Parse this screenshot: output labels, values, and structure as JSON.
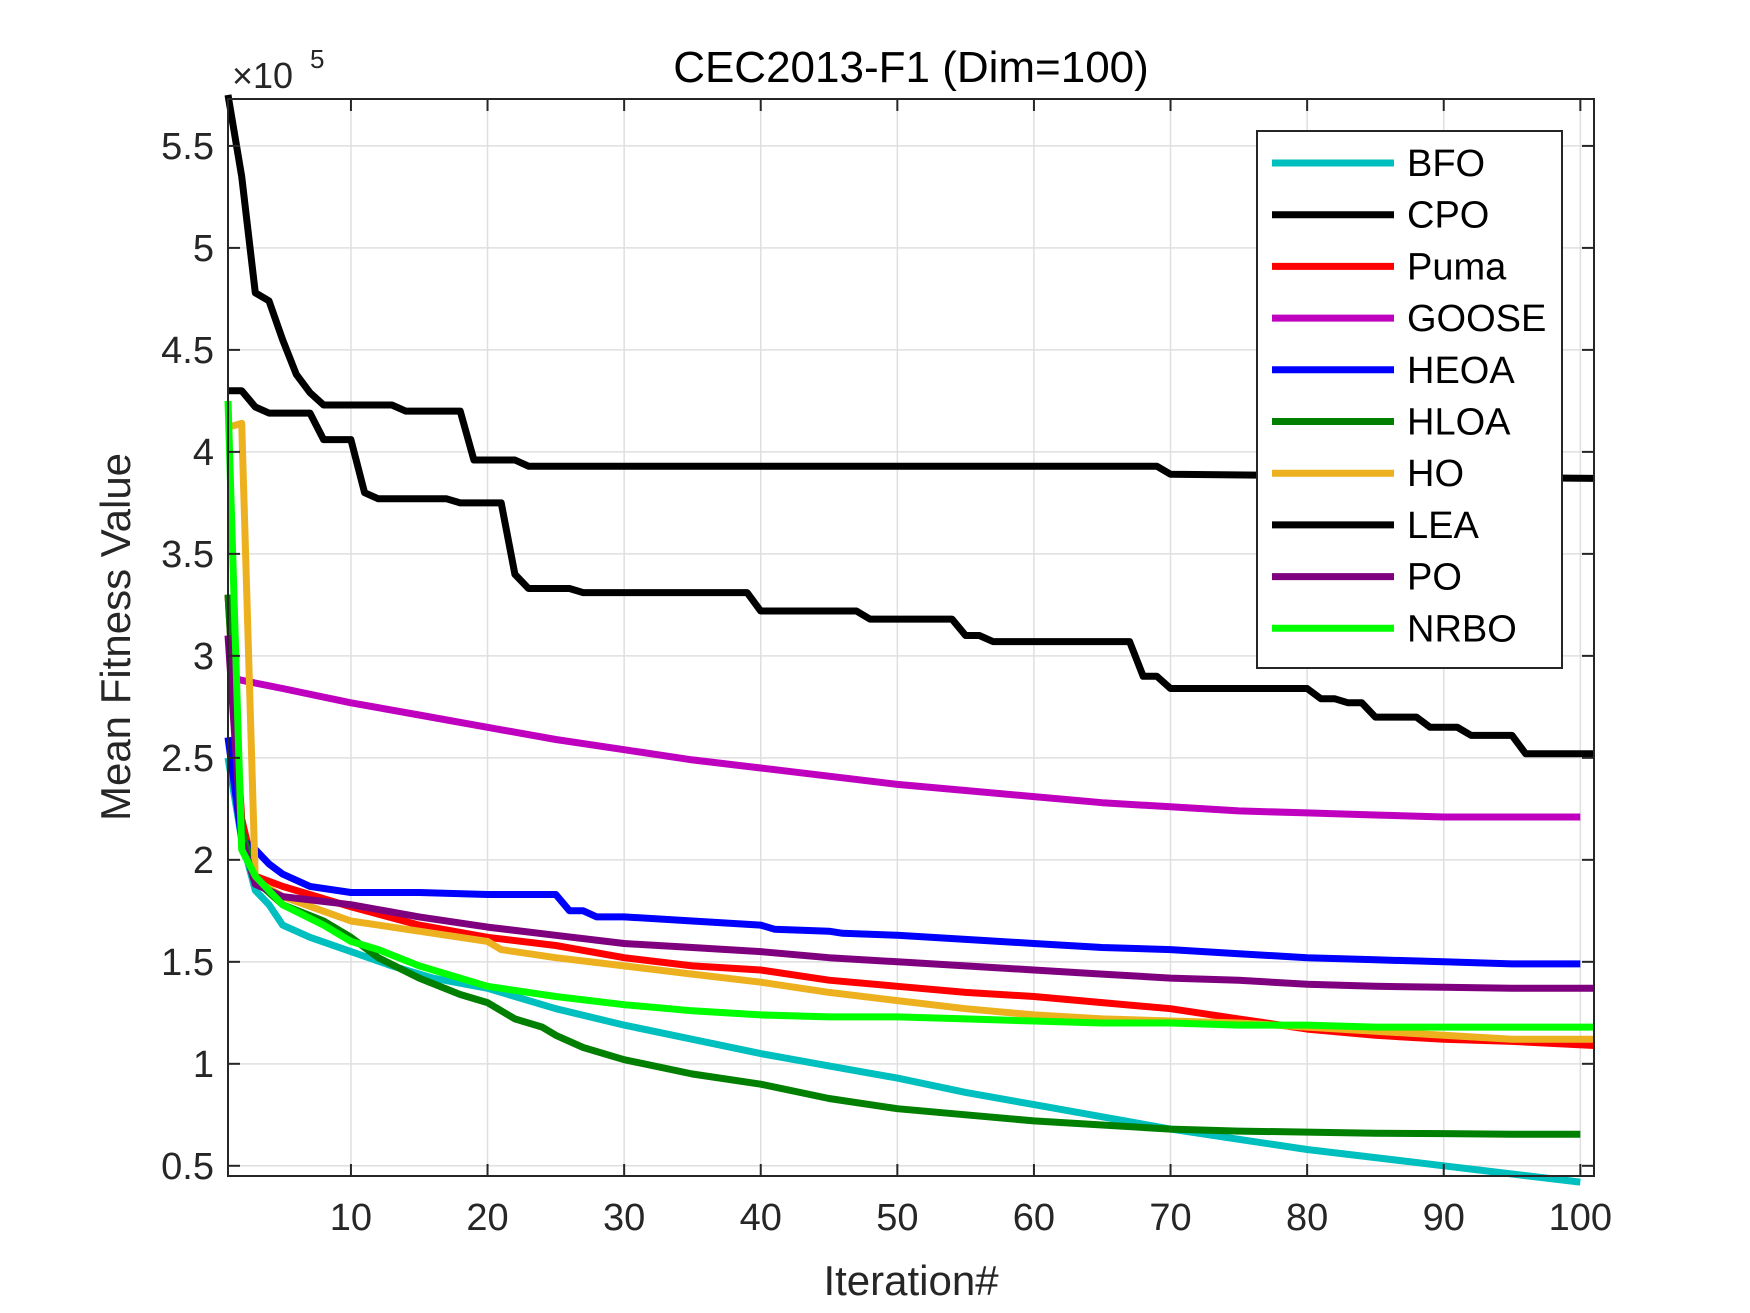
{
  "chart_data": {
    "type": "line",
    "title": "CEC2013-F1 (Dim=100)",
    "xlabel": "Iteration#",
    "ylabel": "Mean Fitness Value",
    "y_multiplier": {
      "base": "×10",
      "exponent": "5"
    },
    "xlim": [
      1,
      101
    ],
    "ylim": [
      0.45,
      5.73
    ],
    "x_ticks": [
      10,
      20,
      30,
      40,
      50,
      60,
      70,
      80,
      90,
      100
    ],
    "x_tick_labels": [
      "10",
      "20",
      "30",
      "40",
      "50",
      "60",
      "70",
      "80",
      "90",
      "100"
    ],
    "y_ticks": [
      0.5,
      1,
      1.5,
      2,
      2.5,
      3,
      3.5,
      4,
      4.5,
      5,
      5.5
    ],
    "y_tick_labels": [
      "0.5",
      "1",
      "1.5",
      "2",
      "2.5",
      "3",
      "3.5",
      "4",
      "4.5",
      "5",
      "5.5"
    ],
    "grid": true,
    "legend_position": "top-right",
    "series": [
      {
        "name": "BFO",
        "color": "#00bfbf",
        "points": [
          [
            1,
            2.5
          ],
          [
            2,
            2.1
          ],
          [
            3,
            1.85
          ],
          [
            4,
            1.78
          ],
          [
            5,
            1.68
          ],
          [
            7,
            1.62
          ],
          [
            10,
            1.55
          ],
          [
            13,
            1.48
          ],
          [
            16,
            1.42
          ],
          [
            20,
            1.37
          ],
          [
            25,
            1.27
          ],
          [
            30,
            1.19
          ],
          [
            35,
            1.12
          ],
          [
            40,
            1.05
          ],
          [
            45,
            0.99
          ],
          [
            50,
            0.93
          ],
          [
            55,
            0.86
          ],
          [
            60,
            0.8
          ],
          [
            65,
            0.74
          ],
          [
            70,
            0.68
          ],
          [
            75,
            0.63
          ],
          [
            80,
            0.58
          ],
          [
            85,
            0.54
          ],
          [
            90,
            0.5
          ],
          [
            95,
            0.46
          ],
          [
            100,
            0.42
          ]
        ]
      },
      {
        "name": "CPO",
        "color": "#000000",
        "points": [
          [
            1,
            4.3
          ],
          [
            2,
            4.3
          ],
          [
            3,
            4.22
          ],
          [
            4,
            4.19
          ],
          [
            7,
            4.19
          ],
          [
            8,
            4.06
          ],
          [
            10,
            4.06
          ],
          [
            11,
            3.8
          ],
          [
            12,
            3.77
          ],
          [
            17,
            3.77
          ],
          [
            18,
            3.75
          ],
          [
            21,
            3.75
          ],
          [
            22,
            3.4
          ],
          [
            23,
            3.33
          ],
          [
            26,
            3.33
          ],
          [
            27,
            3.31
          ],
          [
            39,
            3.31
          ],
          [
            40,
            3.22
          ],
          [
            47,
            3.22
          ],
          [
            48,
            3.18
          ],
          [
            54,
            3.18
          ],
          [
            55,
            3.1
          ],
          [
            56,
            3.1
          ],
          [
            57,
            3.07
          ],
          [
            66,
            3.07
          ],
          [
            67,
            3.07
          ],
          [
            68,
            2.9
          ],
          [
            69,
            2.9
          ],
          [
            70,
            2.84
          ],
          [
            80,
            2.84
          ],
          [
            81,
            2.79
          ],
          [
            82,
            2.79
          ],
          [
            83,
            2.77
          ],
          [
            84,
            2.77
          ],
          [
            85,
            2.7
          ],
          [
            88,
            2.7
          ],
          [
            89,
            2.65
          ],
          [
            91,
            2.65
          ],
          [
            92,
            2.61
          ],
          [
            95,
            2.61
          ],
          [
            96,
            2.52
          ],
          [
            101,
            2.52
          ]
        ]
      },
      {
        "name": "Puma",
        "color": "#ff0000",
        "points": [
          [
            1,
            3.3
          ],
          [
            2,
            2.2
          ],
          [
            3,
            1.92
          ],
          [
            5,
            1.87
          ],
          [
            10,
            1.77
          ],
          [
            15,
            1.68
          ],
          [
            20,
            1.62
          ],
          [
            25,
            1.58
          ],
          [
            30,
            1.52
          ],
          [
            35,
            1.48
          ],
          [
            40,
            1.46
          ],
          [
            45,
            1.41
          ],
          [
            50,
            1.38
          ],
          [
            55,
            1.35
          ],
          [
            60,
            1.33
          ],
          [
            65,
            1.3
          ],
          [
            70,
            1.27
          ],
          [
            75,
            1.22
          ],
          [
            80,
            1.17
          ],
          [
            85,
            1.14
          ],
          [
            90,
            1.12
          ],
          [
            95,
            1.11
          ],
          [
            101,
            1.09
          ]
        ]
      },
      {
        "name": "GOOSE",
        "color": "#bf00bf",
        "points": [
          [
            1,
            2.9
          ],
          [
            2,
            2.88
          ],
          [
            5,
            2.84
          ],
          [
            10,
            2.77
          ],
          [
            15,
            2.71
          ],
          [
            20,
            2.65
          ],
          [
            25,
            2.59
          ],
          [
            30,
            2.54
          ],
          [
            35,
            2.49
          ],
          [
            40,
            2.45
          ],
          [
            45,
            2.41
          ],
          [
            50,
            2.37
          ],
          [
            55,
            2.34
          ],
          [
            60,
            2.31
          ],
          [
            65,
            2.28
          ],
          [
            70,
            2.26
          ],
          [
            75,
            2.24
          ],
          [
            80,
            2.23
          ],
          [
            85,
            2.22
          ],
          [
            90,
            2.21
          ],
          [
            95,
            2.21
          ],
          [
            100,
            2.21
          ]
        ]
      },
      {
        "name": "HEOA",
        "color": "#0000ff",
        "points": [
          [
            1,
            2.6
          ],
          [
            2,
            2.1
          ],
          [
            3,
            2.05
          ],
          [
            4,
            1.98
          ],
          [
            5,
            1.93
          ],
          [
            7,
            1.87
          ],
          [
            10,
            1.84
          ],
          [
            15,
            1.84
          ],
          [
            20,
            1.83
          ],
          [
            25,
            1.83
          ],
          [
            26,
            1.75
          ],
          [
            27,
            1.75
          ],
          [
            28,
            1.72
          ],
          [
            30,
            1.72
          ],
          [
            35,
            1.7
          ],
          [
            40,
            1.68
          ],
          [
            41,
            1.66
          ],
          [
            45,
            1.65
          ],
          [
            46,
            1.64
          ],
          [
            50,
            1.63
          ],
          [
            55,
            1.61
          ],
          [
            60,
            1.59
          ],
          [
            65,
            1.57
          ],
          [
            70,
            1.56
          ],
          [
            75,
            1.54
          ],
          [
            80,
            1.52
          ],
          [
            85,
            1.51
          ],
          [
            90,
            1.5
          ],
          [
            95,
            1.49
          ],
          [
            100,
            1.49
          ]
        ]
      },
      {
        "name": "HLOA",
        "color": "#007f00",
        "points": [
          [
            1,
            3.3
          ],
          [
            2,
            2.15
          ],
          [
            3,
            1.9
          ],
          [
            5,
            1.78
          ],
          [
            8,
            1.7
          ],
          [
            10,
            1.62
          ],
          [
            12,
            1.52
          ],
          [
            15,
            1.42
          ],
          [
            18,
            1.34
          ],
          [
            20,
            1.3
          ],
          [
            22,
            1.22
          ],
          [
            24,
            1.18
          ],
          [
            25,
            1.14
          ],
          [
            27,
            1.08
          ],
          [
            30,
            1.02
          ],
          [
            35,
            0.95
          ],
          [
            40,
            0.9
          ],
          [
            45,
            0.83
          ],
          [
            50,
            0.78
          ],
          [
            55,
            0.75
          ],
          [
            60,
            0.72
          ],
          [
            65,
            0.7
          ],
          [
            70,
            0.68
          ],
          [
            75,
            0.67
          ],
          [
            80,
            0.665
          ],
          [
            85,
            0.66
          ],
          [
            90,
            0.658
          ],
          [
            95,
            0.655
          ],
          [
            100,
            0.655
          ]
        ]
      },
      {
        "name": "HO",
        "color": "#edb120",
        "points": [
          [
            1,
            4.12
          ],
          [
            2,
            4.14
          ],
          [
            3,
            1.9
          ],
          [
            5,
            1.82
          ],
          [
            10,
            1.7
          ],
          [
            15,
            1.65
          ],
          [
            20,
            1.6
          ],
          [
            21,
            1.56
          ],
          [
            25,
            1.52
          ],
          [
            30,
            1.48
          ],
          [
            35,
            1.44
          ],
          [
            40,
            1.4
          ],
          [
            45,
            1.35
          ],
          [
            50,
            1.31
          ],
          [
            55,
            1.27
          ],
          [
            60,
            1.24
          ],
          [
            65,
            1.22
          ],
          [
            70,
            1.21
          ],
          [
            75,
            1.2
          ],
          [
            80,
            1.18
          ],
          [
            85,
            1.16
          ],
          [
            90,
            1.14
          ],
          [
            95,
            1.12
          ],
          [
            101,
            1.12
          ]
        ]
      },
      {
        "name": "LEA",
        "color": "#000000",
        "points": [
          [
            1,
            5.75
          ],
          [
            2,
            5.35
          ],
          [
            3,
            4.78
          ],
          [
            4,
            4.74
          ],
          [
            5,
            4.55
          ],
          [
            6,
            4.38
          ],
          [
            7,
            4.29
          ],
          [
            8,
            4.23
          ],
          [
            13,
            4.23
          ],
          [
            14,
            4.2
          ],
          [
            18,
            4.2
          ],
          [
            19,
            3.96
          ],
          [
            22,
            3.96
          ],
          [
            23,
            3.93
          ],
          [
            69,
            3.93
          ],
          [
            70,
            3.89
          ],
          [
            101,
            3.87
          ]
        ]
      },
      {
        "name": "PO",
        "color": "#7e007e",
        "points": [
          [
            1,
            3.1
          ],
          [
            2,
            2.1
          ],
          [
            3,
            1.88
          ],
          [
            5,
            1.82
          ],
          [
            10,
            1.78
          ],
          [
            15,
            1.72
          ],
          [
            20,
            1.67
          ],
          [
            25,
            1.63
          ],
          [
            30,
            1.59
          ],
          [
            35,
            1.57
          ],
          [
            40,
            1.55
          ],
          [
            45,
            1.52
          ],
          [
            50,
            1.5
          ],
          [
            55,
            1.48
          ],
          [
            60,
            1.46
          ],
          [
            65,
            1.44
          ],
          [
            70,
            1.42
          ],
          [
            75,
            1.41
          ],
          [
            80,
            1.39
          ],
          [
            85,
            1.38
          ],
          [
            90,
            1.375
          ],
          [
            95,
            1.37
          ],
          [
            101,
            1.37
          ]
        ]
      },
      {
        "name": "NRBO",
        "color": "#00ff00",
        "points": [
          [
            1,
            4.25
          ],
          [
            2,
            2.05
          ],
          [
            3,
            1.92
          ],
          [
            5,
            1.78
          ],
          [
            8,
            1.68
          ],
          [
            10,
            1.6
          ],
          [
            12,
            1.56
          ],
          [
            15,
            1.48
          ],
          [
            20,
            1.38
          ],
          [
            25,
            1.33
          ],
          [
            30,
            1.29
          ],
          [
            35,
            1.26
          ],
          [
            40,
            1.24
          ],
          [
            45,
            1.23
          ],
          [
            50,
            1.23
          ],
          [
            55,
            1.22
          ],
          [
            60,
            1.21
          ],
          [
            65,
            1.2
          ],
          [
            70,
            1.2
          ],
          [
            75,
            1.19
          ],
          [
            80,
            1.19
          ],
          [
            85,
            1.18
          ],
          [
            90,
            1.18
          ],
          [
            95,
            1.18
          ],
          [
            101,
            1.18
          ]
        ]
      }
    ]
  }
}
